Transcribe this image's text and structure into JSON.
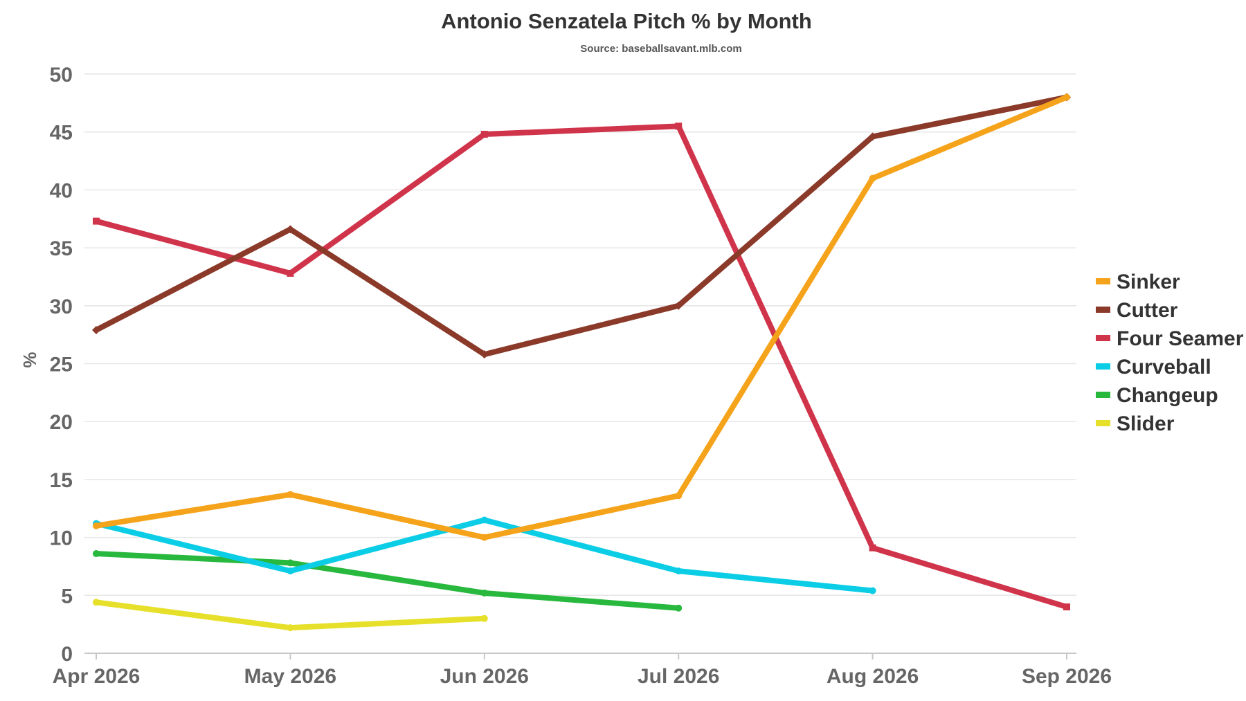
{
  "chart_data": {
    "type": "line",
    "title": "Antonio Senzatela Pitch % by Month",
    "subtitle": "Source: baseballsavant.mlb.com",
    "xlabel": "",
    "ylabel": "%",
    "ylim": [
      0,
      50
    ],
    "yticks": [
      0,
      5,
      10,
      15,
      20,
      25,
      30,
      35,
      40,
      45,
      50
    ],
    "grid": true,
    "legend_position": "right",
    "categories": [
      "Apr 2026",
      "May 2026",
      "Jun 2026",
      "Jul 2026",
      "Aug 2026",
      "Sep 2026"
    ],
    "series": [
      {
        "name": "Sinker",
        "color": "#f5a31a",
        "marker": "circle",
        "values": [
          11.0,
          13.7,
          10.0,
          13.6,
          41.0,
          48.0
        ]
      },
      {
        "name": "Cutter",
        "color": "#8b3a2a",
        "marker": "diamond",
        "values": [
          27.9,
          36.6,
          25.8,
          30.0,
          44.6,
          48.0
        ]
      },
      {
        "name": "Four Seamer",
        "color": "#d0344b",
        "marker": "square",
        "values": [
          37.3,
          32.8,
          44.8,
          45.5,
          9.1,
          4.0
        ]
      },
      {
        "name": "Curveball",
        "color": "#0bcde6",
        "marker": "circle",
        "values": [
          11.2,
          7.1,
          11.5,
          7.1,
          5.4,
          null
        ]
      },
      {
        "name": "Changeup",
        "color": "#27b83d",
        "marker": "circle",
        "values": [
          8.6,
          7.8,
          5.2,
          3.9,
          null,
          null
        ]
      },
      {
        "name": "Slider",
        "color": "#e6e02a",
        "marker": "circle",
        "values": [
          4.4,
          2.2,
          3.0,
          null,
          null,
          null
        ]
      }
    ]
  }
}
